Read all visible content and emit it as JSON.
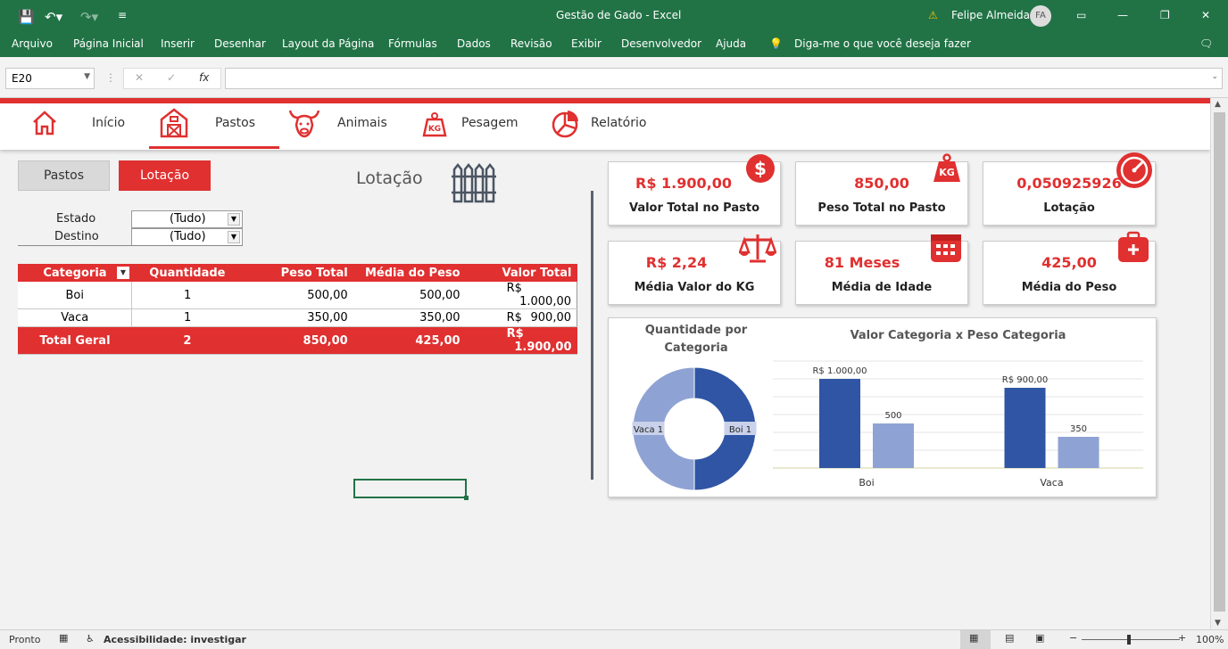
{
  "window": {
    "title": "Gestão de Gado  -  Excel",
    "user": "Felipe Almeida",
    "user_initials": "FA"
  },
  "menu": [
    "Arquivo",
    "Página Inicial",
    "Inserir",
    "Desenhar",
    "Layout da Página",
    "Fórmulas",
    "Dados",
    "Revisão",
    "Exibir",
    "Desenvolvedor",
    "Ajuda"
  ],
  "tell_me": "Diga-me o que você deseja fazer",
  "formula": {
    "namebox": "E20",
    "fx": "fx",
    "value": ""
  },
  "nav": {
    "inicio": "Início",
    "pastos": "Pastos",
    "animais": "Animais",
    "pesagem": "Pesagem",
    "relatorio": "Relatório"
  },
  "tabs": {
    "pastos": "Pastos",
    "lotacao": "Lotação"
  },
  "section_title": "Lotação",
  "filters": {
    "estado_label": "Estado",
    "estado_value": "(Tudo)",
    "destino_label": "Destino",
    "destino_value": "(Tudo)"
  },
  "pivot": {
    "headers": [
      "Categoria",
      "Quantidade",
      "Peso Total",
      "Média do Peso",
      "Valor Total"
    ],
    "rows": [
      {
        "cat": "Boi",
        "qtd": "1",
        "peso": "500,00",
        "media": "500,00",
        "cur": "R$",
        "valor": "1.000,00"
      },
      {
        "cat": "Vaca",
        "qtd": "1",
        "peso": "350,00",
        "media": "350,00",
        "cur": "R$",
        "valor": "900,00"
      }
    ],
    "total": {
      "cat": "Total Geral",
      "qtd": "2",
      "peso": "850,00",
      "media": "425,00",
      "cur": "R$",
      "valor": "1.900,00"
    }
  },
  "kpis": [
    {
      "value": "R$ 1.900,00",
      "label": "Valor Total no Pasto",
      "icon": "dollar-icon"
    },
    {
      "value": "850,00",
      "label": "Peso Total no Pasto",
      "icon": "weight-kg-icon"
    },
    {
      "value": "0,050925926",
      "label": "Lotação",
      "icon": "gauge-icon"
    },
    {
      "value": "R$ 2,24",
      "label": "Média Valor do KG",
      "icon": "scale-icon"
    },
    {
      "value": "81 Meses",
      "label": "Média de Idade",
      "icon": "calendar-icon"
    },
    {
      "value": "425,00",
      "label": "Média do Peso",
      "icon": "medical-kit-icon"
    }
  ],
  "chart_data": [
    {
      "type": "pie",
      "title": "Quantidade por Categoria",
      "categories": [
        "Boi 1",
        "Vaca 1"
      ],
      "values": [
        1,
        1
      ],
      "colors": [
        "#2f55a4",
        "#8fa2d4"
      ],
      "donut": true
    },
    {
      "type": "bar",
      "title": "Valor Categoria x Peso Categoria",
      "categories": [
        "Boi",
        "Vaca"
      ],
      "series": [
        {
          "values": [
            1000,
            900
          ],
          "color": "#2f55a4",
          "labels": [
            "R$ 1.000,00",
            "R$ 900,00"
          ]
        },
        {
          "values": [
            500,
            350
          ],
          "color": "#8fa2d4",
          "labels": [
            "500",
            "350"
          ]
        }
      ],
      "ylim": [
        0,
        1200
      ],
      "grid": true
    }
  ],
  "status": {
    "ready": "Pronto",
    "accessibility": "Acessibilidade: investigar",
    "zoom": "100%"
  }
}
